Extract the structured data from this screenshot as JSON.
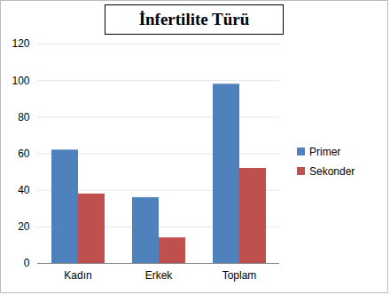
{
  "chart_data": {
    "type": "bar",
    "title": "İnfertilite Türü",
    "categories": [
      "Kadın",
      "Erkek",
      "Toplam"
    ],
    "series": [
      {
        "name": "Primer",
        "color": "#4f81bd",
        "values": [
          62,
          36,
          98
        ]
      },
      {
        "name": "Sekonder",
        "color": "#c0504d",
        "values": [
          38,
          14,
          52
        ]
      }
    ],
    "ylim": [
      0,
      120
    ],
    "yticks": [
      0,
      20,
      40,
      60,
      80,
      100,
      120
    ],
    "grid": true,
    "legend": "right"
  }
}
